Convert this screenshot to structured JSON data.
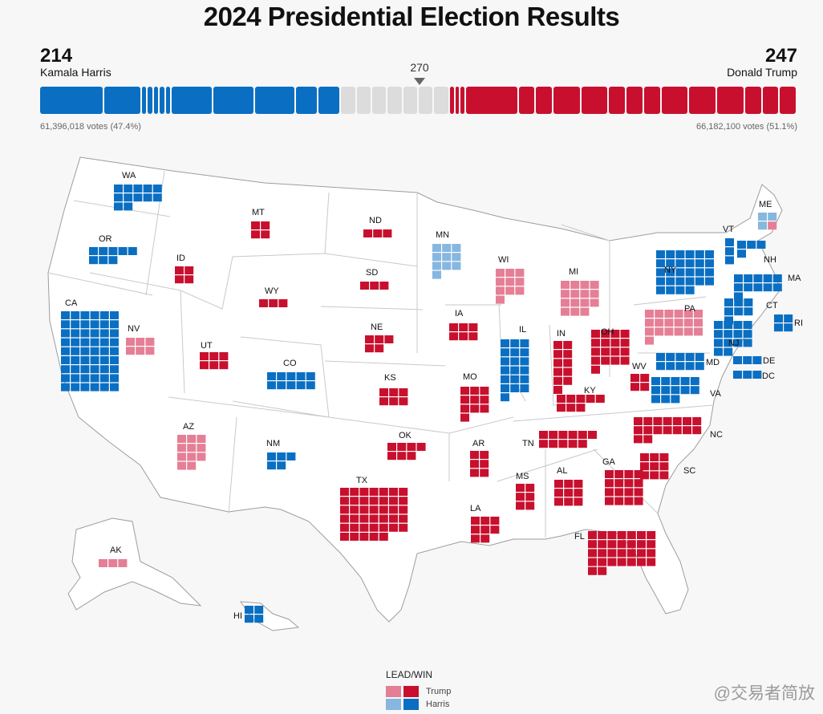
{
  "title": "2024 Presidential Election Results",
  "harris": {
    "ev": "214",
    "name": "Kamala Harris",
    "votes": "61,396,018 votes (47.4%)"
  },
  "trump": {
    "ev": "247",
    "name": "Donald Trump",
    "votes": "66,182,100 votes (51.1%)"
  },
  "needed": "270",
  "colors": {
    "trump_win": "#c8102e",
    "trump_lead": "#e57f96",
    "harris_win": "#0a6fc2",
    "harris_lead": "#86b7e0",
    "undecided": "#dcdcdc",
    "land": "#ffffff",
    "border": "#9d9d9d"
  },
  "legend": {
    "title": "LEAD/WIN",
    "trump": "Trump",
    "harris": "Harris"
  },
  "watermark": "@交易者简放",
  "states": [
    {
      "abbr": "WA",
      "ev": 12,
      "status": "harris_win"
    },
    {
      "abbr": "OR",
      "ev": 8,
      "status": "harris_win"
    },
    {
      "abbr": "CA",
      "ev": 54,
      "status": "harris_win"
    },
    {
      "abbr": "NV",
      "ev": 6,
      "status": "trump_lead"
    },
    {
      "abbr": "ID",
      "ev": 4,
      "status": "trump_win"
    },
    {
      "abbr": "MT",
      "ev": 4,
      "status": "trump_win"
    },
    {
      "abbr": "WY",
      "ev": 3,
      "status": "trump_win"
    },
    {
      "abbr": "UT",
      "ev": 6,
      "status": "trump_win"
    },
    {
      "abbr": "AZ",
      "ev": 11,
      "status": "trump_lead"
    },
    {
      "abbr": "CO",
      "ev": 10,
      "status": "harris_win"
    },
    {
      "abbr": "NM",
      "ev": 5,
      "status": "harris_win"
    },
    {
      "abbr": "ND",
      "ev": 3,
      "status": "trump_win"
    },
    {
      "abbr": "SD",
      "ev": 3,
      "status": "trump_win"
    },
    {
      "abbr": "NE",
      "ev": 5,
      "status": "trump_win"
    },
    {
      "abbr": "KS",
      "ev": 6,
      "status": "trump_win"
    },
    {
      "abbr": "OK",
      "ev": 7,
      "status": "trump_win"
    },
    {
      "abbr": "TX",
      "ev": 40,
      "status": "trump_win"
    },
    {
      "abbr": "MN",
      "ev": 10,
      "status": "harris_lead"
    },
    {
      "abbr": "IA",
      "ev": 6,
      "status": "trump_win"
    },
    {
      "abbr": "MO",
      "ev": 10,
      "status": "trump_win"
    },
    {
      "abbr": "AR",
      "ev": 6,
      "status": "trump_win"
    },
    {
      "abbr": "LA",
      "ev": 8,
      "status": "trump_win"
    },
    {
      "abbr": "WI",
      "ev": 10,
      "status": "trump_lead"
    },
    {
      "abbr": "IL",
      "ev": 19,
      "status": "harris_win"
    },
    {
      "abbr": "MI",
      "ev": 15,
      "status": "trump_lead"
    },
    {
      "abbr": "IN",
      "ev": 11,
      "status": "trump_win"
    },
    {
      "abbr": "OH",
      "ev": 17,
      "status": "trump_win"
    },
    {
      "abbr": "KY",
      "ev": 8,
      "status": "trump_win"
    },
    {
      "abbr": "TN",
      "ev": 11,
      "status": "trump_win"
    },
    {
      "abbr": "MS",
      "ev": 6,
      "status": "trump_win"
    },
    {
      "abbr": "AL",
      "ev": 9,
      "status": "trump_win"
    },
    {
      "abbr": "GA",
      "ev": 16,
      "status": "trump_win"
    },
    {
      "abbr": "FL",
      "ev": 30,
      "status": "trump_win"
    },
    {
      "abbr": "SC",
      "ev": 9,
      "status": "trump_win"
    },
    {
      "abbr": "NC",
      "ev": 16,
      "status": "trump_win"
    },
    {
      "abbr": "VA",
      "ev": 13,
      "status": "harris_win"
    },
    {
      "abbr": "WV",
      "ev": 4,
      "status": "trump_win"
    },
    {
      "abbr": "PA",
      "ev": 19,
      "status": "trump_lead"
    },
    {
      "abbr": "NY",
      "ev": 28,
      "status": "harris_win"
    },
    {
      "abbr": "VT",
      "ev": 3,
      "status": "harris_win"
    },
    {
      "abbr": "NH",
      "ev": 4,
      "status": "harris_win"
    },
    {
      "abbr": "ME",
      "ev": 4,
      "status": "mixed"
    },
    {
      "abbr": "MA",
      "ev": 11,
      "status": "harris_win"
    },
    {
      "abbr": "CT",
      "ev": 7,
      "status": "harris_win"
    },
    {
      "abbr": "RI",
      "ev": 4,
      "status": "harris_win"
    },
    {
      "abbr": "NJ",
      "ev": 14,
      "status": "harris_win"
    },
    {
      "abbr": "DE",
      "ev": 3,
      "status": "harris_win"
    },
    {
      "abbr": "MD",
      "ev": 10,
      "status": "harris_win"
    },
    {
      "abbr": "DC",
      "ev": 3,
      "status": "harris_win"
    },
    {
      "abbr": "AK",
      "ev": 3,
      "status": "trump_lead"
    },
    {
      "abbr": "HI",
      "ev": 4,
      "status": "harris_win"
    }
  ]
}
